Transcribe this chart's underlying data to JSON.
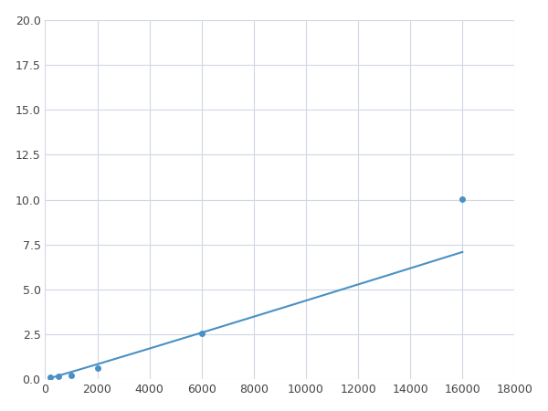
{
  "x": [
    200,
    500,
    1000,
    2000,
    6000,
    16000
  ],
  "y": [
    0.13,
    0.2,
    0.25,
    0.65,
    2.55,
    10.05
  ],
  "line_color": "#4a90c4",
  "marker_color": "#4a90c4",
  "marker_size": 4,
  "xlim": [
    0,
    18000
  ],
  "ylim": [
    0,
    20
  ],
  "xticks": [
    0,
    2000,
    4000,
    6000,
    8000,
    10000,
    12000,
    14000,
    16000,
    18000
  ],
  "yticks": [
    0.0,
    2.5,
    5.0,
    7.5,
    10.0,
    12.5,
    15.0,
    17.5,
    20.0
  ],
  "grid_color": "#d0d8e4",
  "background_color": "#ffffff",
  "figsize": [
    6.0,
    4.5
  ],
  "dpi": 100
}
